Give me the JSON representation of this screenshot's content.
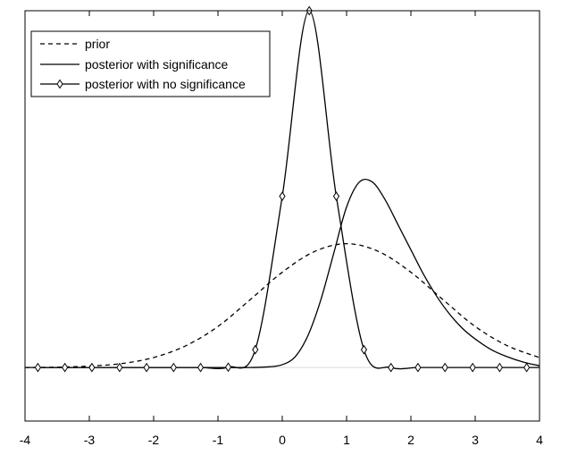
{
  "chart_data": {
    "type": "line",
    "title": "",
    "xlabel": "",
    "ylabel": "",
    "xlim": [
      -4,
      4
    ],
    "ylim": [
      -0.15,
      1.0
    ],
    "grid": false,
    "legend_position": "top-left",
    "x_tick_labels": [
      "-4",
      "-3",
      "-2",
      "-1",
      "0",
      "1",
      "2",
      "3",
      "4"
    ],
    "series": [
      {
        "name": "prior",
        "line_style": "dashed",
        "color": "#000000",
        "x": [
          -4,
          -3.5,
          -3,
          -2.5,
          -2,
          -1.5,
          -1,
          -0.5,
          0,
          0.5,
          1,
          1.5,
          2,
          2.5,
          3,
          3.5,
          4
        ],
        "y": [
          0.0,
          0.001,
          0.004,
          0.011,
          0.028,
          0.061,
          0.115,
          0.19,
          0.267,
          0.325,
          0.347,
          0.325,
          0.267,
          0.19,
          0.115,
          0.061,
          0.028
        ]
      },
      {
        "name": "posterior with significance",
        "line_style": "solid",
        "color": "#000000",
        "x": [
          -4,
          -2,
          -1,
          -0.5,
          -0.2,
          0,
          0.2,
          0.4,
          0.6,
          0.8,
          1.0,
          1.2,
          1.4,
          1.6,
          1.8,
          2.0,
          2.2,
          2.4,
          2.6,
          2.8,
          3.0,
          3.25,
          3.5,
          3.75,
          4.0
        ],
        "y": [
          0.0,
          0.0,
          0.0,
          0.0,
          0.002,
          0.008,
          0.03,
          0.09,
          0.19,
          0.32,
          0.45,
          0.52,
          0.52,
          0.47,
          0.4,
          0.33,
          0.26,
          0.2,
          0.15,
          0.11,
          0.08,
          0.05,
          0.03,
          0.015,
          0.005
        ]
      },
      {
        "name": "posterior with no significance",
        "line_style": "solid-diamond-markers",
        "color": "#000000",
        "x": [
          -3.8,
          -3.38,
          -2.96,
          -2.53,
          -2.11,
          -1.69,
          -1.27,
          -0.84,
          -0.42,
          0.0,
          0.42,
          0.84,
          1.27,
          1.69,
          2.11,
          2.53,
          2.96,
          3.38,
          3.8,
          4.0
        ],
        "y": [
          0.0,
          0.0,
          0.0,
          0.0,
          0.0,
          0.0,
          0.0,
          0.001,
          0.05,
          0.48,
          1.0,
          0.48,
          0.05,
          0.0,
          0.0,
          0.0,
          0.0,
          0.0,
          0.0,
          0.0
        ]
      }
    ]
  }
}
